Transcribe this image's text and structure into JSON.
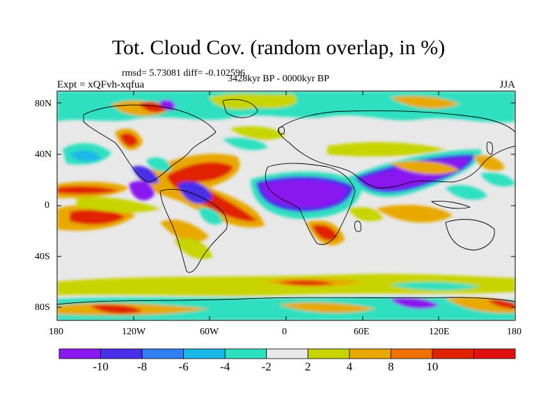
{
  "title": "Tot. Cloud Cov. (random overlap, in %)",
  "subtitle_stats": "rmsd= 5.73081 diff= -0.102596",
  "subtitle_period": "3428kyr BP - 0000kyr BP",
  "expt_label": "Expt = xQFvh-xqfua",
  "season_label": "JJA",
  "lat_ticks": [
    "80N",
    "40N",
    "0",
    "40S",
    "80S"
  ],
  "lon_ticks": [
    "180",
    "120W",
    "60W",
    "0",
    "60E",
    "120E",
    "180"
  ],
  "colorbar": {
    "labels": [
      "-10",
      "-8",
      "-6",
      "-4",
      "-2",
      "2",
      "4",
      "8",
      "10"
    ],
    "colors": [
      "#8a18f0",
      "#4a2ee8",
      "#2f7ff2",
      "#1ab8e8",
      "#2de0c0",
      "#e8e8e8",
      "#c8d400",
      "#e8a800",
      "#ef7200",
      "#e02400",
      "#e01010"
    ]
  },
  "colors": {
    "ocean_neutral": "#e8e8e8",
    "coast": "#000000"
  }
}
